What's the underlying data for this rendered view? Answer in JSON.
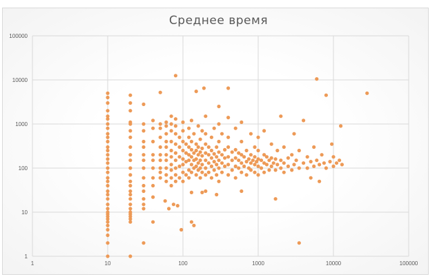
{
  "chart_data": {
    "type": "scatter",
    "title": "Среднее время",
    "xlabel": "",
    "ylabel": "",
    "x_scale": "log",
    "y_scale": "log",
    "xlim": [
      1,
      100000
    ],
    "ylim": [
      1,
      100000
    ],
    "x_ticks": [
      "1",
      "10",
      "100",
      "1000",
      "10000",
      "100000"
    ],
    "y_ticks": [
      "1",
      "10",
      "100",
      "1000",
      "10000",
      "100000"
    ],
    "grid": true,
    "legend": "none",
    "marker_color": "#ED9A57",
    "points": [
      [
        10,
        1
      ],
      [
        10,
        2
      ],
      [
        10,
        3
      ],
      [
        10,
        4
      ],
      [
        10,
        5
      ],
      [
        10,
        6
      ],
      [
        10,
        7
      ],
      [
        10,
        8
      ],
      [
        10,
        9
      ],
      [
        10,
        10
      ],
      [
        10,
        12
      ],
      [
        10,
        15
      ],
      [
        10,
        20
      ],
      [
        10,
        25
      ],
      [
        10,
        30
      ],
      [
        10,
        40
      ],
      [
        10,
        50
      ],
      [
        10,
        60
      ],
      [
        10,
        80
      ],
      [
        10,
        100
      ],
      [
        10,
        130
      ],
      [
        10,
        160
      ],
      [
        10,
        200
      ],
      [
        10,
        250
      ],
      [
        10,
        300
      ],
      [
        10,
        400
      ],
      [
        10,
        500
      ],
      [
        10,
        600
      ],
      [
        10,
        800
      ],
      [
        10,
        1000
      ],
      [
        10,
        1300
      ],
      [
        10,
        1500
      ],
      [
        10,
        2000
      ],
      [
        10,
        3000
      ],
      [
        10,
        4000
      ],
      [
        10,
        5000
      ],
      [
        20,
        1
      ],
      [
        20,
        6
      ],
      [
        20,
        7
      ],
      [
        20,
        8
      ],
      [
        20,
        9
      ],
      [
        20,
        10
      ],
      [
        20,
        12
      ],
      [
        20,
        15
      ],
      [
        20,
        20
      ],
      [
        20,
        25
      ],
      [
        20,
        30
      ],
      [
        20,
        40
      ],
      [
        20,
        50
      ],
      [
        20,
        70
      ],
      [
        20,
        100
      ],
      [
        20,
        150
      ],
      [
        20,
        200
      ],
      [
        20,
        300
      ],
      [
        20,
        500
      ],
      [
        20,
        700
      ],
      [
        20,
        1000
      ],
      [
        20,
        1100
      ],
      [
        20,
        2000
      ],
      [
        20,
        3000
      ],
      [
        20,
        4500
      ],
      [
        30,
        2
      ],
      [
        30,
        12
      ],
      [
        30,
        15
      ],
      [
        30,
        20
      ],
      [
        30,
        30
      ],
      [
        30,
        40
      ],
      [
        30,
        60
      ],
      [
        30,
        100
      ],
      [
        30,
        150
      ],
      [
        30,
        200
      ],
      [
        30,
        300
      ],
      [
        30,
        400
      ],
      [
        30,
        700
      ],
      [
        30,
        1000
      ],
      [
        30,
        2800
      ],
      [
        40,
        6
      ],
      [
        40,
        22
      ],
      [
        40,
        40
      ],
      [
        40,
        60
      ],
      [
        40,
        100
      ],
      [
        40,
        150
      ],
      [
        40,
        200
      ],
      [
        40,
        400
      ],
      [
        40,
        800
      ],
      [
        40,
        1200
      ],
      [
        50,
        60
      ],
      [
        50,
        80
      ],
      [
        50,
        100
      ],
      [
        50,
        150
      ],
      [
        50,
        200
      ],
      [
        50,
        300
      ],
      [
        50,
        500
      ],
      [
        50,
        800
      ],
      [
        50,
        1000
      ],
      [
        50,
        5200
      ],
      [
        58,
        18
      ],
      [
        60,
        50
      ],
      [
        60,
        70
      ],
      [
        60,
        100
      ],
      [
        60,
        150
      ],
      [
        60,
        200
      ],
      [
        60,
        300
      ],
      [
        60,
        400
      ],
      [
        60,
        600
      ],
      [
        60,
        900
      ],
      [
        60,
        1100
      ],
      [
        65,
        12
      ],
      [
        70,
        40
      ],
      [
        70,
        60
      ],
      [
        70,
        90
      ],
      [
        70,
        120
      ],
      [
        70,
        180
      ],
      [
        70,
        250
      ],
      [
        70,
        400
      ],
      [
        70,
        700
      ],
      [
        70,
        1000
      ],
      [
        70,
        1500
      ],
      [
        75,
        15
      ],
      [
        80,
        50
      ],
      [
        80,
        70
      ],
      [
        80,
        100
      ],
      [
        80,
        150
      ],
      [
        80,
        220
      ],
      [
        80,
        350
      ],
      [
        80,
        600
      ],
      [
        80,
        900
      ],
      [
        80,
        1300
      ],
      [
        80,
        12500
      ],
      [
        85,
        14
      ],
      [
        90,
        60
      ],
      [
        90,
        110
      ],
      [
        90,
        180
      ],
      [
        90,
        300
      ],
      [
        90,
        500
      ],
      [
        95,
        4
      ],
      [
        100,
        50
      ],
      [
        100,
        80
      ],
      [
        100,
        120
      ],
      [
        100,
        160
      ],
      [
        100,
        250
      ],
      [
        100,
        400
      ],
      [
        100,
        700
      ],
      [
        100,
        1100
      ],
      [
        110,
        70
      ],
      [
        110,
        140
      ],
      [
        110,
        220
      ],
      [
        110,
        350
      ],
      [
        120,
        60
      ],
      [
        120,
        90
      ],
      [
        120,
        150
      ],
      [
        120,
        200
      ],
      [
        120,
        300
      ],
      [
        120,
        500
      ],
      [
        120,
        800
      ],
      [
        130,
        6
      ],
      [
        130,
        28
      ],
      [
        130,
        80
      ],
      [
        130,
        120
      ],
      [
        130,
        180
      ],
      [
        130,
        260
      ],
      [
        130,
        400
      ],
      [
        130,
        1200
      ],
      [
        140,
        5
      ],
      [
        140,
        100
      ],
      [
        140,
        150
      ],
      [
        140,
        220
      ],
      [
        140,
        600
      ],
      [
        150,
        70
      ],
      [
        150,
        110
      ],
      [
        150,
        160
      ],
      [
        150,
        250
      ],
      [
        150,
        350
      ],
      [
        150,
        5500
      ],
      [
        160,
        90
      ],
      [
        160,
        130
      ],
      [
        160,
        200
      ],
      [
        160,
        300
      ],
      [
        160,
        900
      ],
      [
        170,
        60
      ],
      [
        170,
        100
      ],
      [
        170,
        150
      ],
      [
        170,
        230
      ],
      [
        170,
        450
      ],
      [
        180,
        28
      ],
      [
        180,
        80
      ],
      [
        180,
        120
      ],
      [
        180,
        190
      ],
      [
        180,
        280
      ],
      [
        180,
        700
      ],
      [
        190,
        6500
      ],
      [
        200,
        30
      ],
      [
        200,
        70
      ],
      [
        200,
        100
      ],
      [
        200,
        150
      ],
      [
        200,
        220
      ],
      [
        200,
        350
      ],
      [
        200,
        600
      ],
      [
        200,
        1500
      ],
      [
        220,
        80
      ],
      [
        220,
        130
      ],
      [
        220,
        200
      ],
      [
        220,
        300
      ],
      [
        240,
        60
      ],
      [
        240,
        110
      ],
      [
        240,
        170
      ],
      [
        240,
        250
      ],
      [
        240,
        500
      ],
      [
        260,
        90
      ],
      [
        260,
        140
      ],
      [
        260,
        210
      ],
      [
        260,
        800
      ],
      [
        280,
        25
      ],
      [
        280,
        70
      ],
      [
        280,
        120
      ],
      [
        280,
        180
      ],
      [
        280,
        300
      ],
      [
        300,
        50
      ],
      [
        300,
        100
      ],
      [
        300,
        150
      ],
      [
        300,
        230
      ],
      [
        300,
        400
      ],
      [
        300,
        1000
      ],
      [
        300,
        2500
      ],
      [
        330,
        80
      ],
      [
        330,
        130
      ],
      [
        330,
        200
      ],
      [
        330,
        600
      ],
      [
        360,
        110
      ],
      [
        360,
        170
      ],
      [
        360,
        260
      ],
      [
        400,
        70
      ],
      [
        400,
        120
      ],
      [
        400,
        180
      ],
      [
        400,
        300
      ],
      [
        400,
        500
      ],
      [
        400,
        1400
      ],
      [
        400,
        6500
      ],
      [
        450,
        90
      ],
      [
        450,
        150
      ],
      [
        450,
        230
      ],
      [
        500,
        60
      ],
      [
        500,
        110
      ],
      [
        500,
        170
      ],
      [
        500,
        260
      ],
      [
        500,
        800
      ],
      [
        550,
        100
      ],
      [
        550,
        150
      ],
      [
        550,
        220
      ],
      [
        600,
        30
      ],
      [
        600,
        80
      ],
      [
        600,
        130
      ],
      [
        600,
        200
      ],
      [
        600,
        400
      ],
      [
        600,
        1100
      ],
      [
        650,
        110
      ],
      [
        650,
        180
      ],
      [
        700,
        70
      ],
      [
        700,
        140
      ],
      [
        700,
        250
      ],
      [
        750,
        100
      ],
      [
        750,
        160
      ],
      [
        800,
        90
      ],
      [
        800,
        130
      ],
      [
        800,
        200
      ],
      [
        800,
        600
      ],
      [
        850,
        150
      ],
      [
        900,
        80
      ],
      [
        900,
        120
      ],
      [
        900,
        180
      ],
      [
        900,
        300
      ],
      [
        950,
        140
      ],
      [
        1000,
        70
      ],
      [
        1000,
        110
      ],
      [
        1000,
        160
      ],
      [
        1000,
        250
      ],
      [
        1000,
        500
      ],
      [
        1100,
        100
      ],
      [
        1100,
        150
      ],
      [
        1200,
        80
      ],
      [
        1200,
        130
      ],
      [
        1200,
        200
      ],
      [
        1200,
        700
      ],
      [
        1300,
        120
      ],
      [
        1300,
        180
      ],
      [
        1400,
        90
      ],
      [
        1400,
        150
      ],
      [
        1500,
        110
      ],
      [
        1500,
        170
      ],
      [
        1500,
        350
      ],
      [
        1600,
        130
      ],
      [
        1700,
        20
      ],
      [
        1700,
        90
      ],
      [
        1700,
        160
      ],
      [
        1800,
        120
      ],
      [
        1800,
        250
      ],
      [
        2000,
        100
      ],
      [
        2000,
        150
      ],
      [
        2000,
        1500
      ],
      [
        2200,
        80
      ],
      [
        2200,
        130
      ],
      [
        2200,
        300
      ],
      [
        2500,
        110
      ],
      [
        2500,
        170
      ],
      [
        2800,
        90
      ],
      [
        2800,
        200
      ],
      [
        3000,
        120
      ],
      [
        3000,
        600
      ],
      [
        3200,
        150
      ],
      [
        3500,
        2
      ],
      [
        3500,
        100
      ],
      [
        3500,
        250
      ],
      [
        4000,
        130
      ],
      [
        4000,
        1200
      ],
      [
        4500,
        100
      ],
      [
        4500,
        180
      ],
      [
        5000,
        60
      ],
      [
        5000,
        140
      ],
      [
        5500,
        110
      ],
      [
        5500,
        300
      ],
      [
        6000,
        10500
      ],
      [
        6000,
        150
      ],
      [
        6500,
        50
      ],
      [
        6500,
        120
      ],
      [
        7000,
        200
      ],
      [
        7500,
        130
      ],
      [
        8000,
        4500
      ],
      [
        8000,
        100
      ],
      [
        9000,
        140
      ],
      [
        9500,
        350
      ],
      [
        10000,
        110
      ],
      [
        10000,
        180
      ],
      [
        11000,
        130
      ],
      [
        12000,
        150
      ],
      [
        12500,
        900
      ],
      [
        13000,
        120
      ],
      [
        28000,
        5000
      ]
    ]
  }
}
